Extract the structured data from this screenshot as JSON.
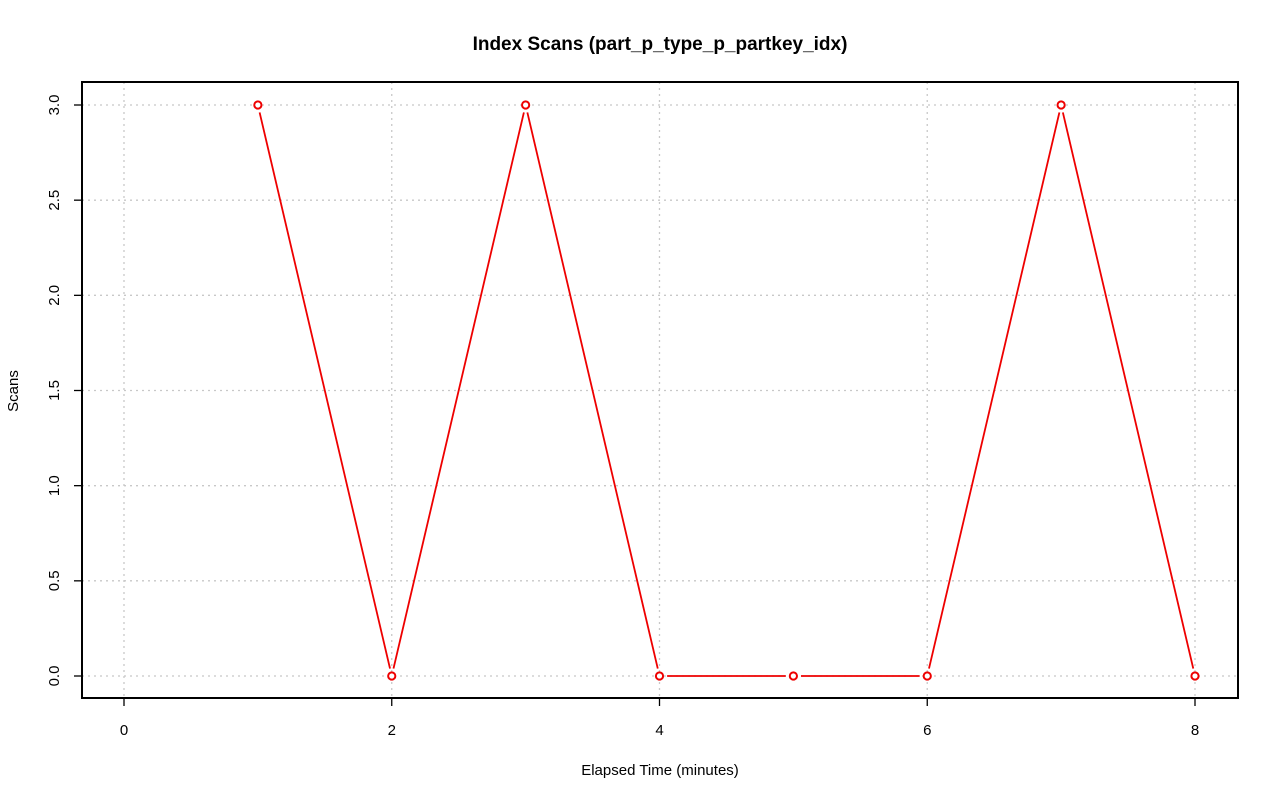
{
  "chart_data": {
    "type": "line",
    "title": "Index Scans (part_p_type_p_partkey_idx)",
    "xlabel": "Elapsed Time (minutes)",
    "ylabel": "Scans",
    "xlim": [
      0,
      8
    ],
    "ylim": [
      0,
      3
    ],
    "x_ticks": [
      0,
      2,
      4,
      6,
      8
    ],
    "x_tick_labels": [
      "0",
      "2",
      "4",
      "6",
      "8"
    ],
    "y_ticks": [
      0,
      0.5,
      1,
      1.5,
      2,
      2.5,
      3
    ],
    "y_tick_labels": [
      "0.0",
      "0.5",
      "1.0",
      "1.5",
      "2.0",
      "2.5",
      "3.0"
    ],
    "grid": true,
    "series": [
      {
        "x": [
          1,
          2,
          3,
          4,
          5,
          6,
          7,
          8
        ],
        "y": [
          3,
          0,
          3,
          0,
          0,
          0,
          3,
          0
        ],
        "color": "#ee0000",
        "marker": "open-circle"
      }
    ]
  }
}
